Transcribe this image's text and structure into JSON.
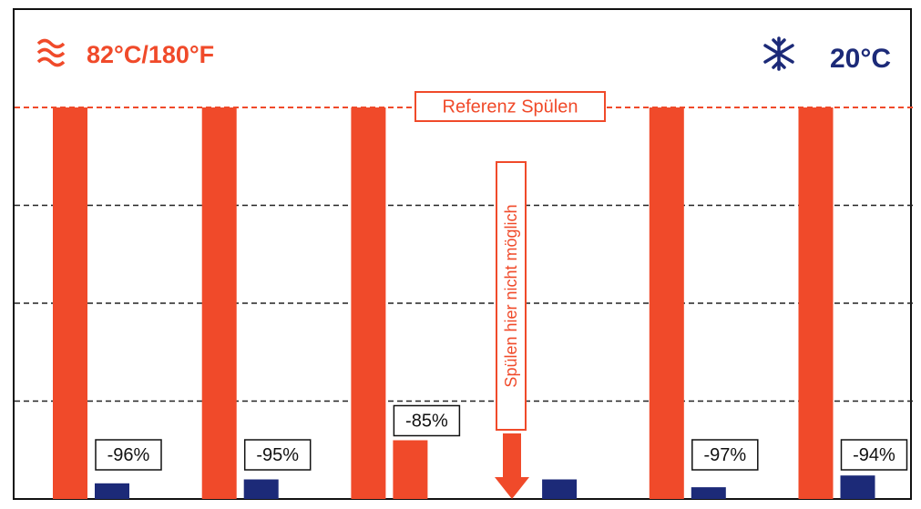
{
  "chart_data": {
    "type": "bar",
    "categories": [
      null,
      null,
      null,
      null,
      null,
      null
    ],
    "series": [
      {
        "name": "82°C/180°F",
        "color": "#f04a2a",
        "values": [
          100,
          100,
          100,
          null,
          100,
          100
        ]
      },
      {
        "name": "20°C",
        "color": "#1c2a78",
        "values": [
          4,
          5,
          15,
          5,
          3,
          6
        ],
        "colors": [
          "#1c2a78",
          "#1c2a78",
          "#f04a2a",
          "#1c2a78",
          "#1c2a78",
          "#1c2a78"
        ],
        "value_labels": [
          "-96%",
          "-95%",
          "-85%",
          null,
          "-97%",
          "-94%"
        ]
      }
    ],
    "ylim": [
      0,
      100
    ],
    "yticks": [
      0,
      25,
      50,
      75,
      100
    ],
    "grid": true,
    "annotations": [
      "Referenz Spülen",
      "Spülen  hier nicht möglich"
    ]
  }
}
